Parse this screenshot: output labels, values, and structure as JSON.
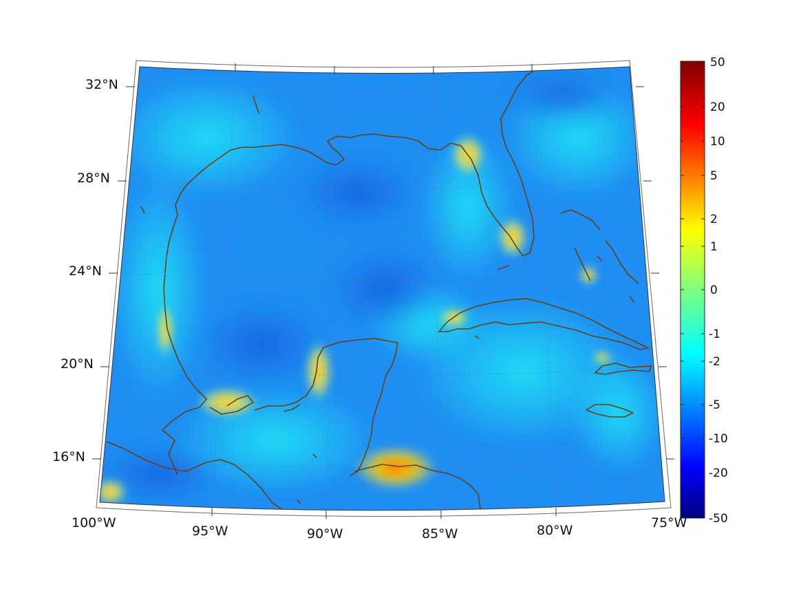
{
  "map": {
    "projection": "conic",
    "lon_range": [
      "100°W",
      "75°W"
    ],
    "lat_range": [
      "~14°N",
      "~32.5°N"
    ],
    "lon_ticks": [
      "100°W",
      "95°W",
      "90°W",
      "85°W",
      "80°W",
      "75°W"
    ],
    "lat_ticks": [
      "32°N",
      "28°N",
      "24°N",
      "20°N",
      "16°N"
    ],
    "coastline_color": "#6b3f10",
    "gridlines": "dotted",
    "field_base_color": "#1e8cf0"
  },
  "colorbar": {
    "position": "right",
    "colormap": "jet",
    "scale": "nonlinear",
    "tick_labels": [
      "50",
      "20",
      "10",
      "5",
      "2",
      "1",
      "0",
      "-1",
      "-2",
      "-5",
      "-10",
      "-20",
      "-50"
    ]
  }
}
